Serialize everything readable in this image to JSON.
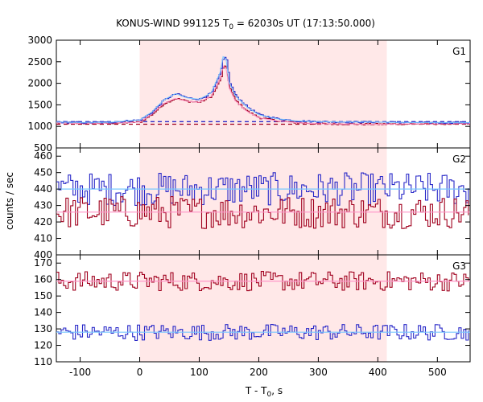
{
  "chart_data": {
    "type": "line",
    "title": "KONUS-WIND 991125 T",
    "title_sub": "0",
    "title_rest": " = 62030s UT (17:13:50.000)",
    "xlabel": "T - T",
    "xlabel_sub": "0",
    "xlabel_rest": ", s",
    "ylabel": "counts / sec",
    "xlim": [
      -140,
      555
    ],
    "x_ticks": [
      -100,
      0,
      100,
      200,
      300,
      400,
      500
    ],
    "x_tick_labels": [
      "-100",
      "0",
      "100",
      "200",
      "300",
      "400",
      "500"
    ],
    "shaded_interval": [
      0,
      415
    ],
    "shade_color": "#ffe8e8",
    "colors": {
      "red": "#a0001e",
      "blue": "#2828c8",
      "light_blue": "#78c8ff",
      "pink": "#ff96c8"
    },
    "panels": [
      {
        "name": "G1",
        "ylim": [
          500,
          3000
        ],
        "y_ticks": [
          500,
          1000,
          1500,
          2000,
          2500,
          3000
        ],
        "y_tick_labels": [
          "500",
          "1000",
          "1500",
          "2000",
          "2500",
          "3000"
        ],
        "background_levels": [
          {
            "name": "red",
            "value": 1050
          },
          {
            "name": "blue",
            "value": 1110
          }
        ],
        "series_points": [
          {
            "name": "red",
            "x": [
              -140,
              -100,
              -50,
              0,
              20,
              40,
              60,
              80,
              100,
              120,
              135,
              140,
              145,
              150,
              160,
              180,
              200,
              230,
              260,
              300,
              350,
              400,
              450,
              500,
              555
            ],
            "y": [
              1080,
              1070,
              1075,
              1100,
              1280,
              1530,
              1650,
              1580,
              1560,
              1700,
              2100,
              2400,
              2350,
              1900,
              1600,
              1350,
              1200,
              1130,
              1090,
              1060,
              1055,
              1050,
              1060,
              1060,
              1065
            ]
          },
          {
            "name": "blue",
            "x": [
              -140,
              -100,
              -50,
              0,
              20,
              40,
              60,
              80,
              100,
              120,
              135,
              140,
              145,
              150,
              160,
              180,
              200,
              230,
              260,
              300,
              350,
              400,
              450,
              500,
              555
            ],
            "y": [
              1100,
              1090,
              1095,
              1150,
              1330,
              1610,
              1760,
              1660,
              1630,
              1780,
              2250,
              2620,
              2560,
              2030,
              1720,
              1450,
              1270,
              1180,
              1130,
              1110,
              1100,
              1100,
              1090,
              1090,
              1090
            ]
          }
        ]
      },
      {
        "name": "G2",
        "ylim": [
          400,
          465
        ],
        "y_ticks": [
          400,
          410,
          420,
          430,
          440,
          450,
          460
        ],
        "y_tick_labels": [
          "400",
          "410",
          "420",
          "430",
          "440",
          "450",
          "460"
        ],
        "series_noise": [
          {
            "name": "blue",
            "mean": 440,
            "amplitude": 10
          },
          {
            "name": "red",
            "mean": 426,
            "amplitude": 10
          }
        ],
        "fits": [
          {
            "name": "light_blue",
            "value": 440
          },
          {
            "name": "pink",
            "value": 426
          }
        ]
      },
      {
        "name": "G3",
        "ylim": [
          110,
          175
        ],
        "y_ticks": [
          110,
          120,
          130,
          140,
          150,
          160,
          170
        ],
        "y_tick_labels": [
          "110",
          "120",
          "130",
          "140",
          "150",
          "160",
          "170"
        ],
        "series_noise": [
          {
            "name": "red",
            "mean": 159,
            "amplitude": 6
          },
          {
            "name": "blue",
            "mean": 128,
            "amplitude": 5
          }
        ],
        "fits": [
          {
            "name": "pink",
            "value": 159
          },
          {
            "name": "light_blue",
            "value": 128
          }
        ]
      }
    ]
  }
}
